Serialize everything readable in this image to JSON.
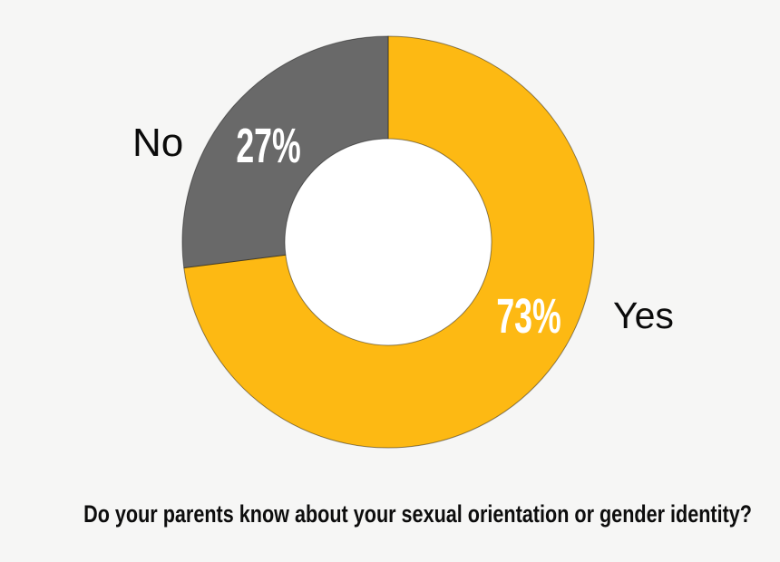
{
  "background_color": "#F6F6F5",
  "hole_color": "#FFFFFF",
  "chart_data": {
    "type": "pie",
    "subtype": "donut",
    "title": "Do your parents know about your sexual orientation or gender identity?",
    "categories": [
      "Yes",
      "No"
    ],
    "values": [
      73,
      27
    ],
    "unit": "%",
    "start_angle_deg": 0,
    "direction": "clockwise",
    "hole_ratio": 0.5,
    "legend_position": "none",
    "slice_stroke": "rgba(0,0,0,0.45)",
    "slices": [
      {
        "label": "Yes",
        "value": 73,
        "display": "73%",
        "color": "#FDB913",
        "value_label_color": "#FFFFFF"
      },
      {
        "label": "No",
        "value": 27,
        "display": "27%",
        "color": "#696969",
        "value_label_color": "#FFFFFF"
      }
    ]
  }
}
